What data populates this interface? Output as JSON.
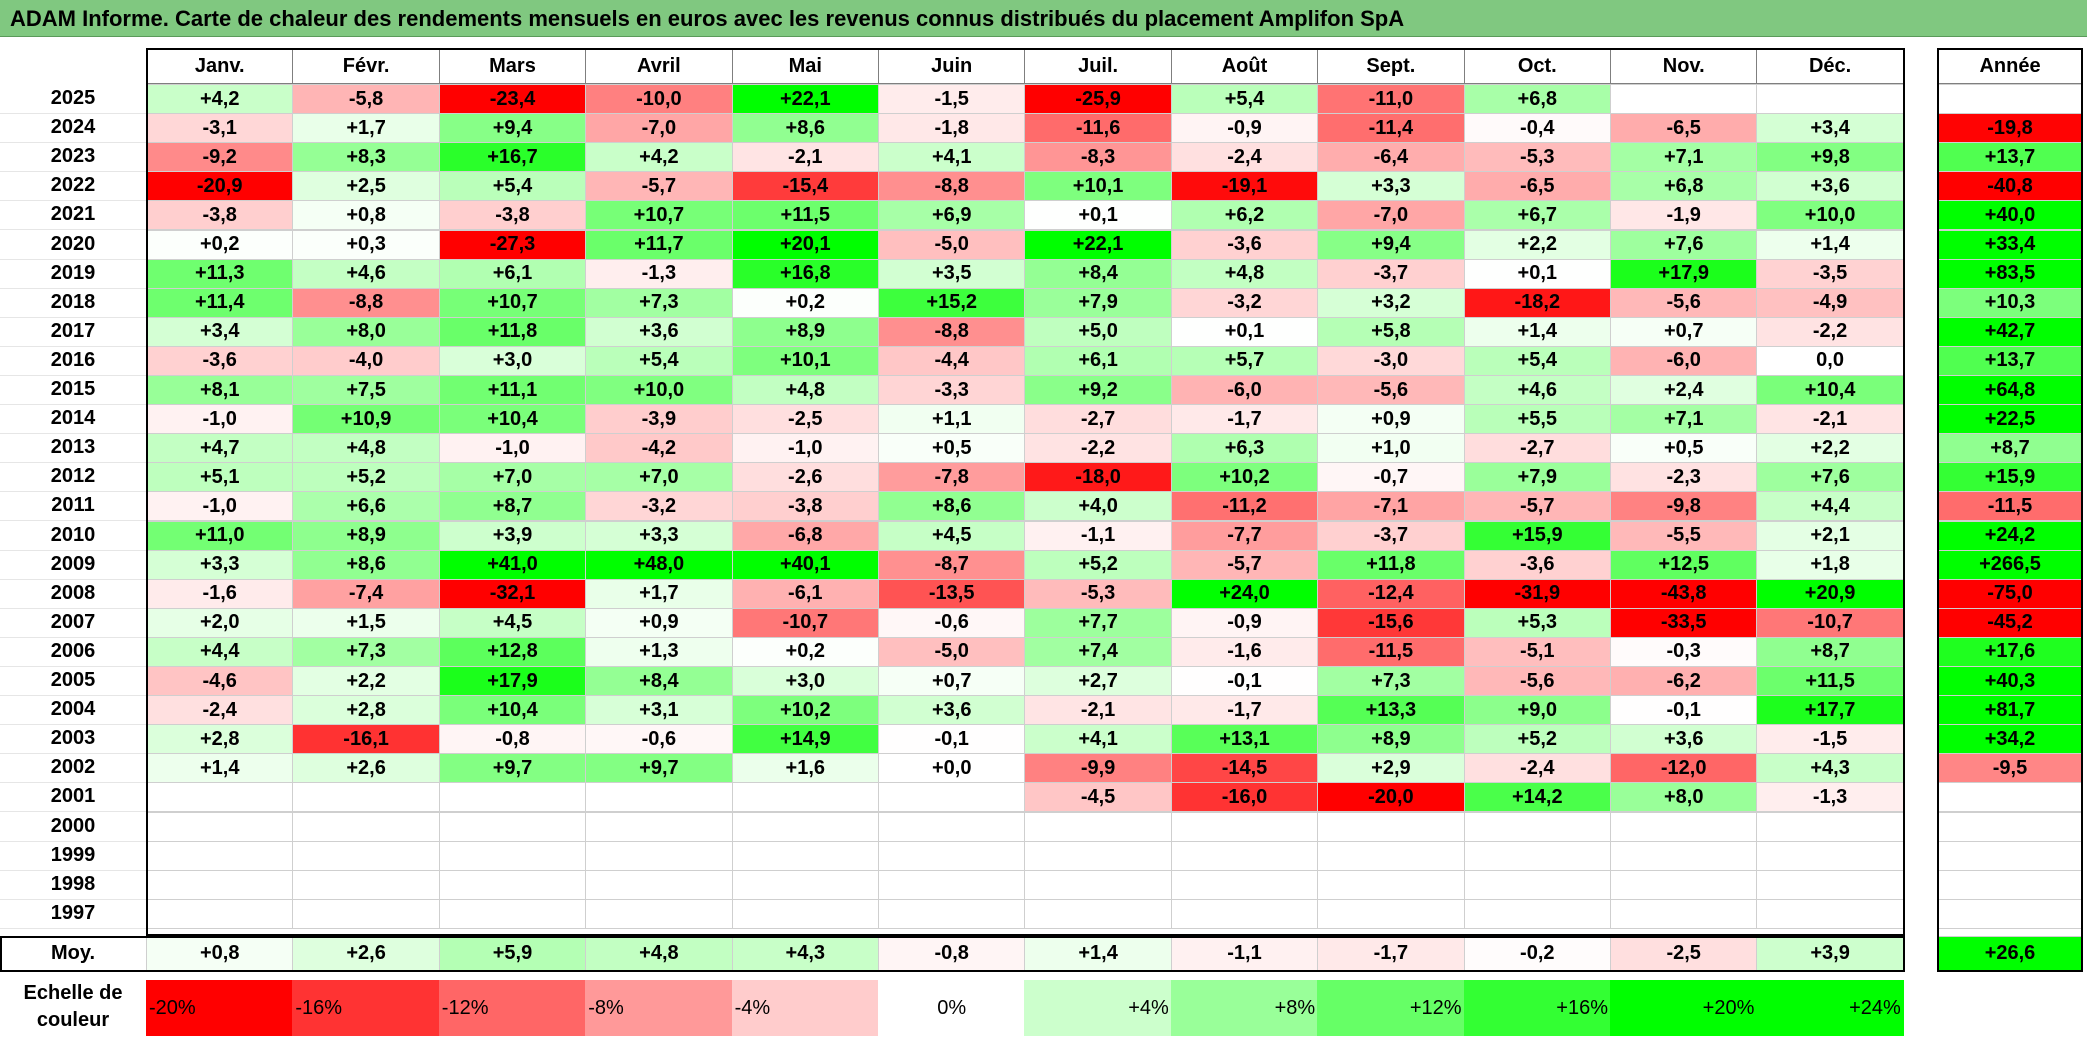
{
  "title": "ADAM Informe. Carte de chaleur des rendements mensuels en euros avec les revenus connus distribués du placement Amplifon SpA",
  "chart_data": {
    "type": "heatmap",
    "months": [
      "Janv.",
      "Févr.",
      "Mars",
      "Avril",
      "Mai",
      "Juin",
      "Juil.",
      "Août",
      "Sept.",
      "Oct.",
      "Nov.",
      "Déc."
    ],
    "year_header": "Année",
    "rows": [
      {
        "year": "2025",
        "values": [
          "+4,2",
          "-5,8",
          "-23,4",
          "-10,0",
          "+22,1",
          "-1,5",
          "-25,9",
          "+5,4",
          "-11,0",
          "+6,8",
          "",
          ""
        ],
        "annual": ""
      },
      {
        "year": "2024",
        "values": [
          "-3,1",
          "+1,7",
          "+9,4",
          "-7,0",
          "+8,6",
          "-1,8",
          "-11,6",
          "-0,9",
          "-11,4",
          "-0,4",
          "-6,5",
          "+3,4"
        ],
        "annual": "-19,8"
      },
      {
        "year": "2023",
        "values": [
          "-9,2",
          "+8,3",
          "+16,7",
          "+4,2",
          "-2,1",
          "+4,1",
          "-8,3",
          "-2,4",
          "-6,4",
          "-5,3",
          "+7,1",
          "+9,8"
        ],
        "annual": "+13,7"
      },
      {
        "year": "2022",
        "values": [
          "-20,9",
          "+2,5",
          "+5,4",
          "-5,7",
          "-15,4",
          "-8,8",
          "+10,1",
          "-19,1",
          "+3,3",
          "-6,5",
          "+6,8",
          "+3,6"
        ],
        "annual": "-40,8"
      },
      {
        "year": "2021",
        "values": [
          "-3,8",
          "+0,8",
          "-3,8",
          "+10,7",
          "+11,5",
          "+6,9",
          "+0,1",
          "+6,2",
          "-7,0",
          "+6,7",
          "-1,9",
          "+10,0"
        ],
        "annual": "+40,0"
      },
      {
        "year": "2020",
        "values": [
          "+0,2",
          "+0,3",
          "-27,3",
          "+11,7",
          "+20,1",
          "-5,0",
          "+22,1",
          "-3,6",
          "+9,4",
          "+2,2",
          "+7,6",
          "+1,4"
        ],
        "annual": "+33,4"
      },
      {
        "year": "2019",
        "values": [
          "+11,3",
          "+4,6",
          "+6,1",
          "-1,3",
          "+16,8",
          "+3,5",
          "+8,4",
          "+4,8",
          "-3,7",
          "+0,1",
          "+17,9",
          "-3,5"
        ],
        "annual": "+83,5"
      },
      {
        "year": "2018",
        "values": [
          "+11,4",
          "-8,8",
          "+10,7",
          "+7,3",
          "+0,2",
          "+15,2",
          "+7,9",
          "-3,2",
          "+3,2",
          "-18,2",
          "-5,6",
          "-4,9"
        ],
        "annual": "+10,3"
      },
      {
        "year": "2017",
        "values": [
          "+3,4",
          "+8,0",
          "+11,8",
          "+3,6",
          "+8,9",
          "-8,8",
          "+5,0",
          "+0,1",
          "+5,8",
          "+1,4",
          "+0,7",
          "-2,2"
        ],
        "annual": "+42,7"
      },
      {
        "year": "2016",
        "values": [
          "-3,6",
          "-4,0",
          "+3,0",
          "+5,4",
          "+10,1",
          "-4,4",
          "+6,1",
          "+5,7",
          "-3,0",
          "+5,4",
          "-6,0",
          "0,0"
        ],
        "annual": "+13,7"
      },
      {
        "year": "2015",
        "values": [
          "+8,1",
          "+7,5",
          "+11,1",
          "+10,0",
          "+4,8",
          "-3,3",
          "+9,2",
          "-6,0",
          "-5,6",
          "+4,6",
          "+2,4",
          "+10,4"
        ],
        "annual": "+64,8"
      },
      {
        "year": "2014",
        "values": [
          "-1,0",
          "+10,9",
          "+10,4",
          "-3,9",
          "-2,5",
          "+1,1",
          "-2,7",
          "-1,7",
          "+0,9",
          "+5,5",
          "+7,1",
          "-2,1"
        ],
        "annual": "+22,5"
      },
      {
        "year": "2013",
        "values": [
          "+4,7",
          "+4,8",
          "-1,0",
          "-4,2",
          "-1,0",
          "+0,5",
          "-2,2",
          "+6,3",
          "+1,0",
          "-2,7",
          "+0,5",
          "+2,2"
        ],
        "annual": "+8,7"
      },
      {
        "year": "2012",
        "values": [
          "+5,1",
          "+5,2",
          "+7,0",
          "+7,0",
          "-2,6",
          "-7,8",
          "-18,0",
          "+10,2",
          "-0,7",
          "+7,9",
          "-2,3",
          "+7,6"
        ],
        "annual": "+15,9"
      },
      {
        "year": "2011",
        "values": [
          "-1,0",
          "+6,6",
          "+8,7",
          "-3,2",
          "-3,8",
          "+8,6",
          "+4,0",
          "-11,2",
          "-7,1",
          "-5,7",
          "-9,8",
          "+4,4"
        ],
        "annual": "-11,5"
      },
      {
        "year": "2010",
        "values": [
          "+11,0",
          "+8,9",
          "+3,9",
          "+3,3",
          "-6,8",
          "+4,5",
          "-1,1",
          "-7,7",
          "-3,7",
          "+15,9",
          "-5,5",
          "+2,1"
        ],
        "annual": "+24,2"
      },
      {
        "year": "2009",
        "values": [
          "+3,3",
          "+8,6",
          "+41,0",
          "+48,0",
          "+40,1",
          "-8,7",
          "+5,2",
          "-5,7",
          "+11,8",
          "-3,6",
          "+12,5",
          "+1,8"
        ],
        "annual": "+266,5"
      },
      {
        "year": "2008",
        "values": [
          "-1,6",
          "-7,4",
          "-32,1",
          "+1,7",
          "-6,1",
          "-13,5",
          "-5,3",
          "+24,0",
          "-12,4",
          "-31,9",
          "-43,8",
          "+20,9"
        ],
        "annual": "-75,0"
      },
      {
        "year": "2007",
        "values": [
          "+2,0",
          "+1,5",
          "+4,5",
          "+0,9",
          "-10,7",
          "-0,6",
          "+7,7",
          "-0,9",
          "-15,6",
          "+5,3",
          "-33,5",
          "-10,7"
        ],
        "annual": "-45,2"
      },
      {
        "year": "2006",
        "values": [
          "+4,4",
          "+7,3",
          "+12,8",
          "+1,3",
          "+0,2",
          "-5,0",
          "+7,4",
          "-1,6",
          "-11,5",
          "-5,1",
          "-0,3",
          "+8,7"
        ],
        "annual": "+17,6"
      },
      {
        "year": "2005",
        "values": [
          "-4,6",
          "+2,2",
          "+17,9",
          "+8,4",
          "+3,0",
          "+0,7",
          "+2,7",
          "-0,1",
          "+7,3",
          "-5,6",
          "-6,2",
          "+11,5"
        ],
        "annual": "+40,3"
      },
      {
        "year": "2004",
        "values": [
          "-2,4",
          "+2,8",
          "+10,4",
          "+3,1",
          "+10,2",
          "+3,6",
          "-2,1",
          "-1,7",
          "+13,3",
          "+9,0",
          "-0,1",
          "+17,7"
        ],
        "annual": "+81,7"
      },
      {
        "year": "2003",
        "values": [
          "+2,8",
          "-16,1",
          "-0,8",
          "-0,6",
          "+14,9",
          "-0,1",
          "+4,1",
          "+13,1",
          "+8,9",
          "+5,2",
          "+3,6",
          "-1,5"
        ],
        "annual": "+34,2"
      },
      {
        "year": "2002",
        "values": [
          "+1,4",
          "+2,6",
          "+9,7",
          "+9,7",
          "+1,6",
          "+0,0",
          "-9,9",
          "-14,5",
          "+2,9",
          "-2,4",
          "-12,0",
          "+4,3"
        ],
        "annual": "-9,5"
      },
      {
        "year": "2001",
        "values": [
          "",
          "",
          "",
          "",
          "",
          "",
          "-4,5",
          "-16,0",
          "-20,0",
          "+14,2",
          "+8,0",
          "-1,3"
        ],
        "annual": ""
      },
      {
        "year": "2000",
        "values": [
          "",
          "",
          "",
          "",
          "",
          "",
          "",
          "",
          "",
          "",
          "",
          ""
        ],
        "annual": ""
      },
      {
        "year": "1999",
        "values": [
          "",
          "",
          "",
          "",
          "",
          "",
          "",
          "",
          "",
          "",
          "",
          ""
        ],
        "annual": ""
      },
      {
        "year": "1998",
        "values": [
          "",
          "",
          "",
          "",
          "",
          "",
          "",
          "",
          "",
          "",
          "",
          ""
        ],
        "annual": ""
      },
      {
        "year": "1997",
        "values": [
          "",
          "",
          "",
          "",
          "",
          "",
          "",
          "",
          "",
          "",
          "",
          ""
        ],
        "annual": ""
      }
    ],
    "average": {
      "label": "Moy.",
      "values": [
        "+0,8",
        "+2,6",
        "+5,9",
        "+4,8",
        "+4,3",
        "-0,8",
        "+1,4",
        "-1,1",
        "-1,7",
        "-0,2",
        "-2,5",
        "+3,9"
      ],
      "annual": "+26,6"
    },
    "color_scale": {
      "label": "Echelle de couleur",
      "stops": [
        "-20%",
        "-16%",
        "-12%",
        "-8%",
        "-4%",
        "0%",
        "+4%",
        "+8%",
        "+12%",
        "+16%",
        "+20%",
        "+24%"
      ],
      "stop_values": [
        -20,
        -16,
        -12,
        -8,
        -4,
        0,
        4,
        8,
        12,
        16,
        20,
        24
      ],
      "colors": [
        "#ff0000",
        "#ff3333",
        "#ff6666",
        "#ff9999",
        "#ffcccc",
        "#ffffff",
        "#ccffcc",
        "#99ff99",
        "#66ff66",
        "#33ff33",
        "#00ff00",
        "#00ff00"
      ]
    }
  }
}
